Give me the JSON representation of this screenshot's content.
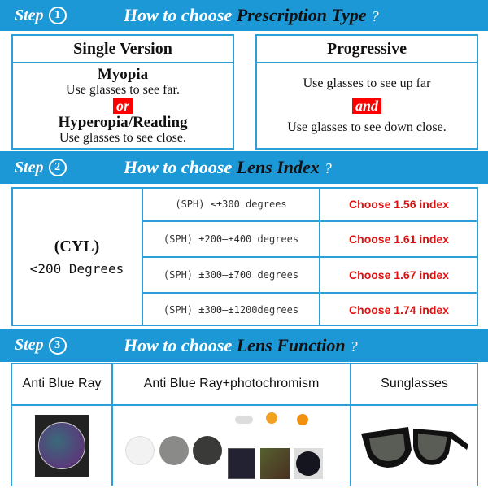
{
  "step1": {
    "step": "Step",
    "num": "1",
    "how": "How to choose",
    "key": "Prescription Type",
    "q": "?",
    "single": {
      "title": "Single Version",
      "myopia": "Myopia",
      "myopia_desc": "Use glasses to see far.",
      "or": "or",
      "hyper": "Hyperopia/Reading",
      "hyper_desc": "Use glasses to see close."
    },
    "progressive": {
      "title": "Progressive",
      "far": "Use glasses to see up far",
      "and": "and",
      "close": "Use glasses to see down close."
    }
  },
  "step2": {
    "step": "Step",
    "num": "2",
    "how": "How to choose",
    "key": "Lens Index",
    "q": "?",
    "cyl": "(CYL)",
    "cyl_range": "<200 Degrees",
    "rows": [
      {
        "sph": "(SPH) ≤±300 degrees",
        "choice": "Choose 1.56 index"
      },
      {
        "sph": "(SPH) ±200—±400 degrees",
        "choice": "Choose 1.61 index"
      },
      {
        "sph": "(SPH) ±300—±700 degrees",
        "choice": "Choose 1.67 index"
      },
      {
        "sph": "(SPH) ±300—±1200degrees",
        "choice": "Choose 1.74 index"
      }
    ]
  },
  "step3": {
    "step": "Step",
    "num": "3",
    "how": "How to choose",
    "key": "Lens Function",
    "q": "?",
    "functions": [
      "Anti Blue Ray",
      "Anti Blue Ray+photochromism",
      "Sunglasses"
    ]
  },
  "colors": {
    "header_blue": "#1b98d5",
    "border_blue": "#2a9fd8",
    "accent_red": "#ff0000",
    "choice_red": "#e01010"
  }
}
